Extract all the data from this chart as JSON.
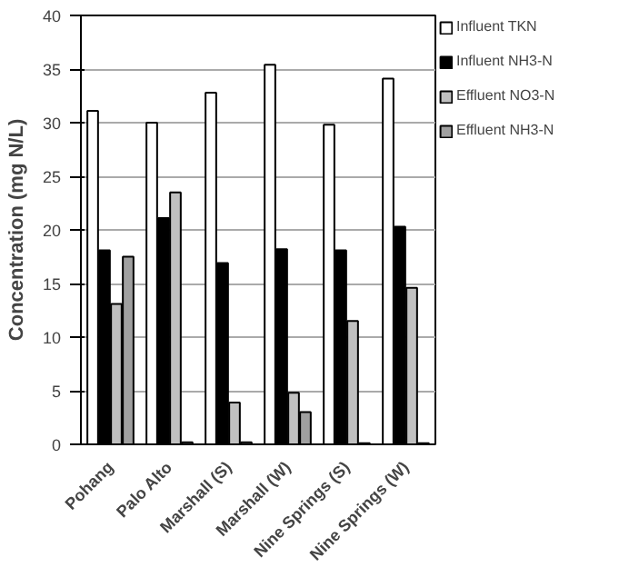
{
  "chart_data": {
    "type": "bar",
    "ylabel": "Concentration (mg N/L)",
    "categories": [
      "Pohang",
      "Palo Alto",
      "Marshall (S)",
      "Marshall (W)",
      "Nine Springs (S)",
      "Nine Springs (W)"
    ],
    "series": [
      {
        "name": "Influent TKN",
        "color": "#ffffff",
        "values": [
          31.1,
          30.0,
          32.8,
          35.4,
          29.8,
          34.1
        ]
      },
      {
        "name": "Influent NH3-N",
        "color": "#000000",
        "values": [
          18.1,
          21.1,
          16.9,
          18.2,
          18.1,
          20.3
        ]
      },
      {
        "name": "Effluent NO3-N",
        "color": "#c0c0c0",
        "values": [
          13.1,
          23.5,
          3.9,
          4.8,
          11.5,
          14.6
        ]
      },
      {
        "name": "Effluent NH3-N",
        "color": "#a0a0a0",
        "values": [
          17.5,
          0.2,
          0.2,
          3.0,
          0.1,
          0.1
        ]
      }
    ],
    "ylim": [
      0,
      40
    ],
    "yticks": [
      0,
      5,
      10,
      15,
      20,
      25,
      30,
      35,
      40
    ],
    "grid": "y",
    "legend": "right"
  }
}
